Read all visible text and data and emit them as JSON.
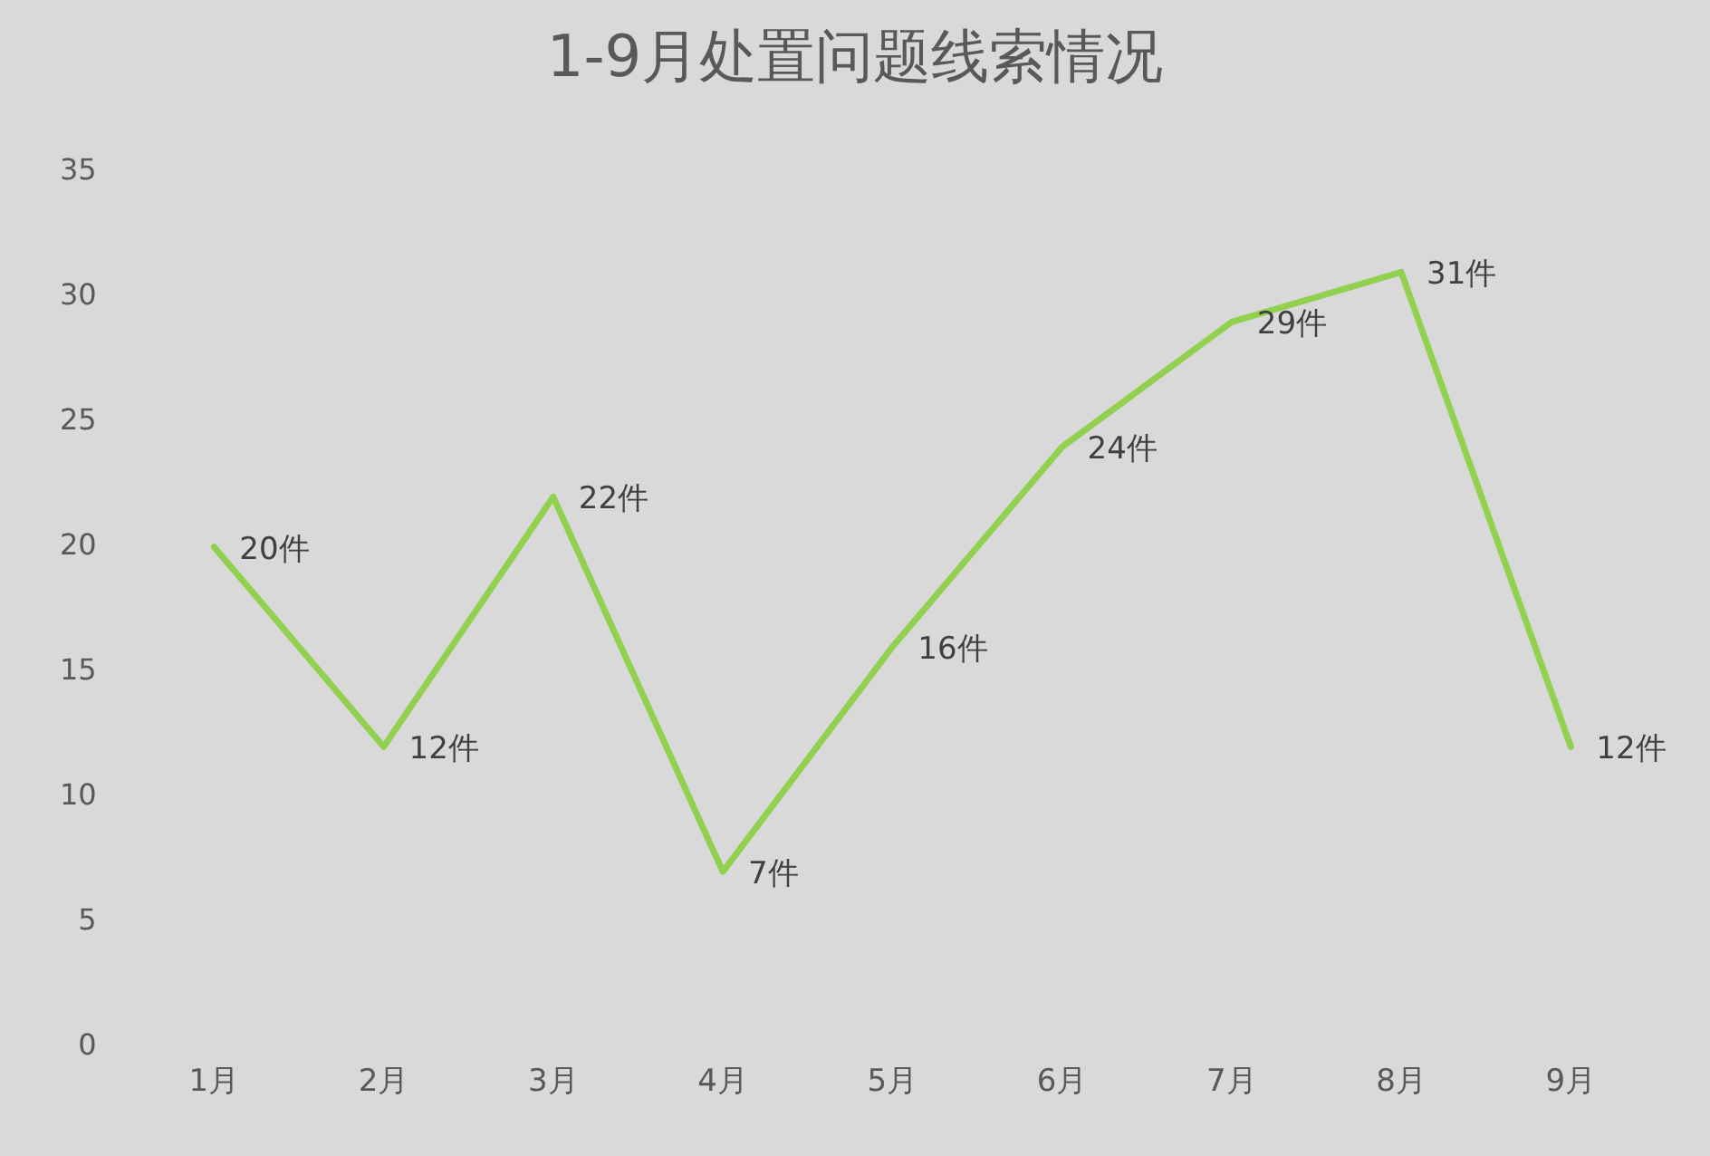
{
  "chart_data": {
    "type": "line",
    "title": "1-9月处置问题线索情况",
    "categories": [
      "1月",
      "2月",
      "3月",
      "4月",
      "5月",
      "6月",
      "7月",
      "8月",
      "9月"
    ],
    "series": [
      {
        "color": "#92d050",
        "values": [
          20,
          12,
          22,
          7,
          16,
          24,
          29,
          31,
          12
        ],
        "value_labels": [
          "20件",
          "12件",
          "22件",
          "7件",
          "16件",
          "24件",
          "29件",
          "31件",
          "12件"
        ]
      }
    ],
    "ylim": [
      0,
      35
    ],
    "yticks": [
      0,
      5,
      10,
      15,
      20,
      25,
      30,
      35
    ],
    "grid": false,
    "legend": false,
    "marker": "none",
    "line_style": "solid"
  }
}
